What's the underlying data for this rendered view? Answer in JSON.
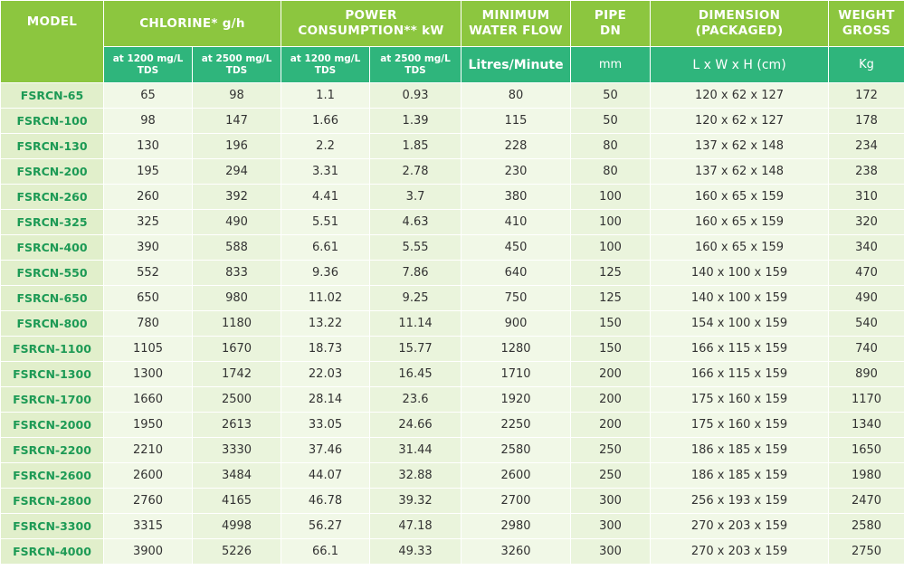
{
  "headers": {
    "model": "MODEL",
    "chlorine": "CHLORINE* g/h",
    "power": "POWER\nCONSUMPTION** kW",
    "flow": "MINIMUM\nWATER FLOW",
    "pipe": "PIPE\nDN",
    "dimension": "DIMENSION\n(PACKAGED)",
    "weight": "WEIGHT\nGROSS"
  },
  "subheaders": {
    "chlorine_1200": "at 1200 mg/L\nTDS",
    "chlorine_2500": "at 2500 mg/L\nTDS",
    "power_1200": "at 1200 mg/L\nTDS",
    "power_2500": "at 2500 mg/L\nTDS",
    "flow_unit": "Litres/Minute",
    "pipe_unit": "mm",
    "dimension_unit": "L x W x H (cm)",
    "weight_unit": "Kg"
  },
  "colors": {
    "header_green": "#8cc63f",
    "subheader_teal": "#2fb57c",
    "model_text": "#1d9a55",
    "model_cell_bg": "#e1efcb",
    "data_cell_bg": "#f1f8e7"
  },
  "rows": [
    [
      "FSRCN-65",
      "65",
      "98",
      "1.1",
      "0.93",
      "80",
      "50",
      "120 x 62 x 127",
      "172"
    ],
    [
      "FSRCN-100",
      "98",
      "147",
      "1.66",
      "1.39",
      "115",
      "50",
      "120 x 62 x 127",
      "178"
    ],
    [
      "FSRCN-130",
      "130",
      "196",
      "2.2",
      "1.85",
      "228",
      "80",
      "137 x 62 x 148",
      "234"
    ],
    [
      "FSRCN-200",
      "195",
      "294",
      "3.31",
      "2.78",
      "230",
      "80",
      "137 x 62 x 148",
      "238"
    ],
    [
      "FSRCN-260",
      "260",
      "392",
      "4.41",
      "3.7",
      "380",
      "100",
      "160 x 65 x 159",
      "310"
    ],
    [
      "FSRCN-325",
      "325",
      "490",
      "5.51",
      "4.63",
      "410",
      "100",
      "160 x 65 x 159",
      "320"
    ],
    [
      "FSRCN-400",
      "390",
      "588",
      "6.61",
      "5.55",
      "450",
      "100",
      "160 x 65 x 159",
      "340"
    ],
    [
      "FSRCN-550",
      "552",
      "833",
      "9.36",
      "7.86",
      "640",
      "125",
      "140 x 100 x 159",
      "470"
    ],
    [
      "FSRCN-650",
      "650",
      "980",
      "11.02",
      "9.25",
      "750",
      "125",
      "140 x 100 x 159",
      "490"
    ],
    [
      "FSRCN-800",
      "780",
      "1180",
      "13.22",
      "11.14",
      "900",
      "150",
      "154 x 100 x 159",
      "540"
    ],
    [
      "FSRCN-1100",
      "1105",
      "1670",
      "18.73",
      "15.77",
      "1280",
      "150",
      "166 x 115 x 159",
      "740"
    ],
    [
      "FSRCN-1300",
      "1300",
      "1742",
      "22.03",
      "16.45",
      "1710",
      "200",
      "166 x 115 x 159",
      "890"
    ],
    [
      "FSRCN-1700",
      "1660",
      "2500",
      "28.14",
      "23.6",
      "1920",
      "200",
      "175 x 160 x 159",
      "1170"
    ],
    [
      "FSRCN-2000",
      "1950",
      "2613",
      "33.05",
      "24.66",
      "2250",
      "200",
      "175 x 160 x 159",
      "1340"
    ],
    [
      "FSRCN-2200",
      "2210",
      "3330",
      "37.46",
      "31.44",
      "2580",
      "250",
      "186 x 185 x 159",
      "1650"
    ],
    [
      "FSRCN-2600",
      "2600",
      "3484",
      "44.07",
      "32.88",
      "2600",
      "250",
      "186 x 185 x 159",
      "1980"
    ],
    [
      "FSRCN-2800",
      "2760",
      "4165",
      "46.78",
      "39.32",
      "2700",
      "300",
      "256 x 193 x 159",
      "2470"
    ],
    [
      "FSRCN-3300",
      "3315",
      "4998",
      "56.27",
      "47.18",
      "2980",
      "300",
      "270 x 203 x 159",
      "2580"
    ],
    [
      "FSRCN-4000",
      "3900",
      "5226",
      "66.1",
      "49.33",
      "3260",
      "300",
      "270 x 203 x 159",
      "2750"
    ]
  ]
}
